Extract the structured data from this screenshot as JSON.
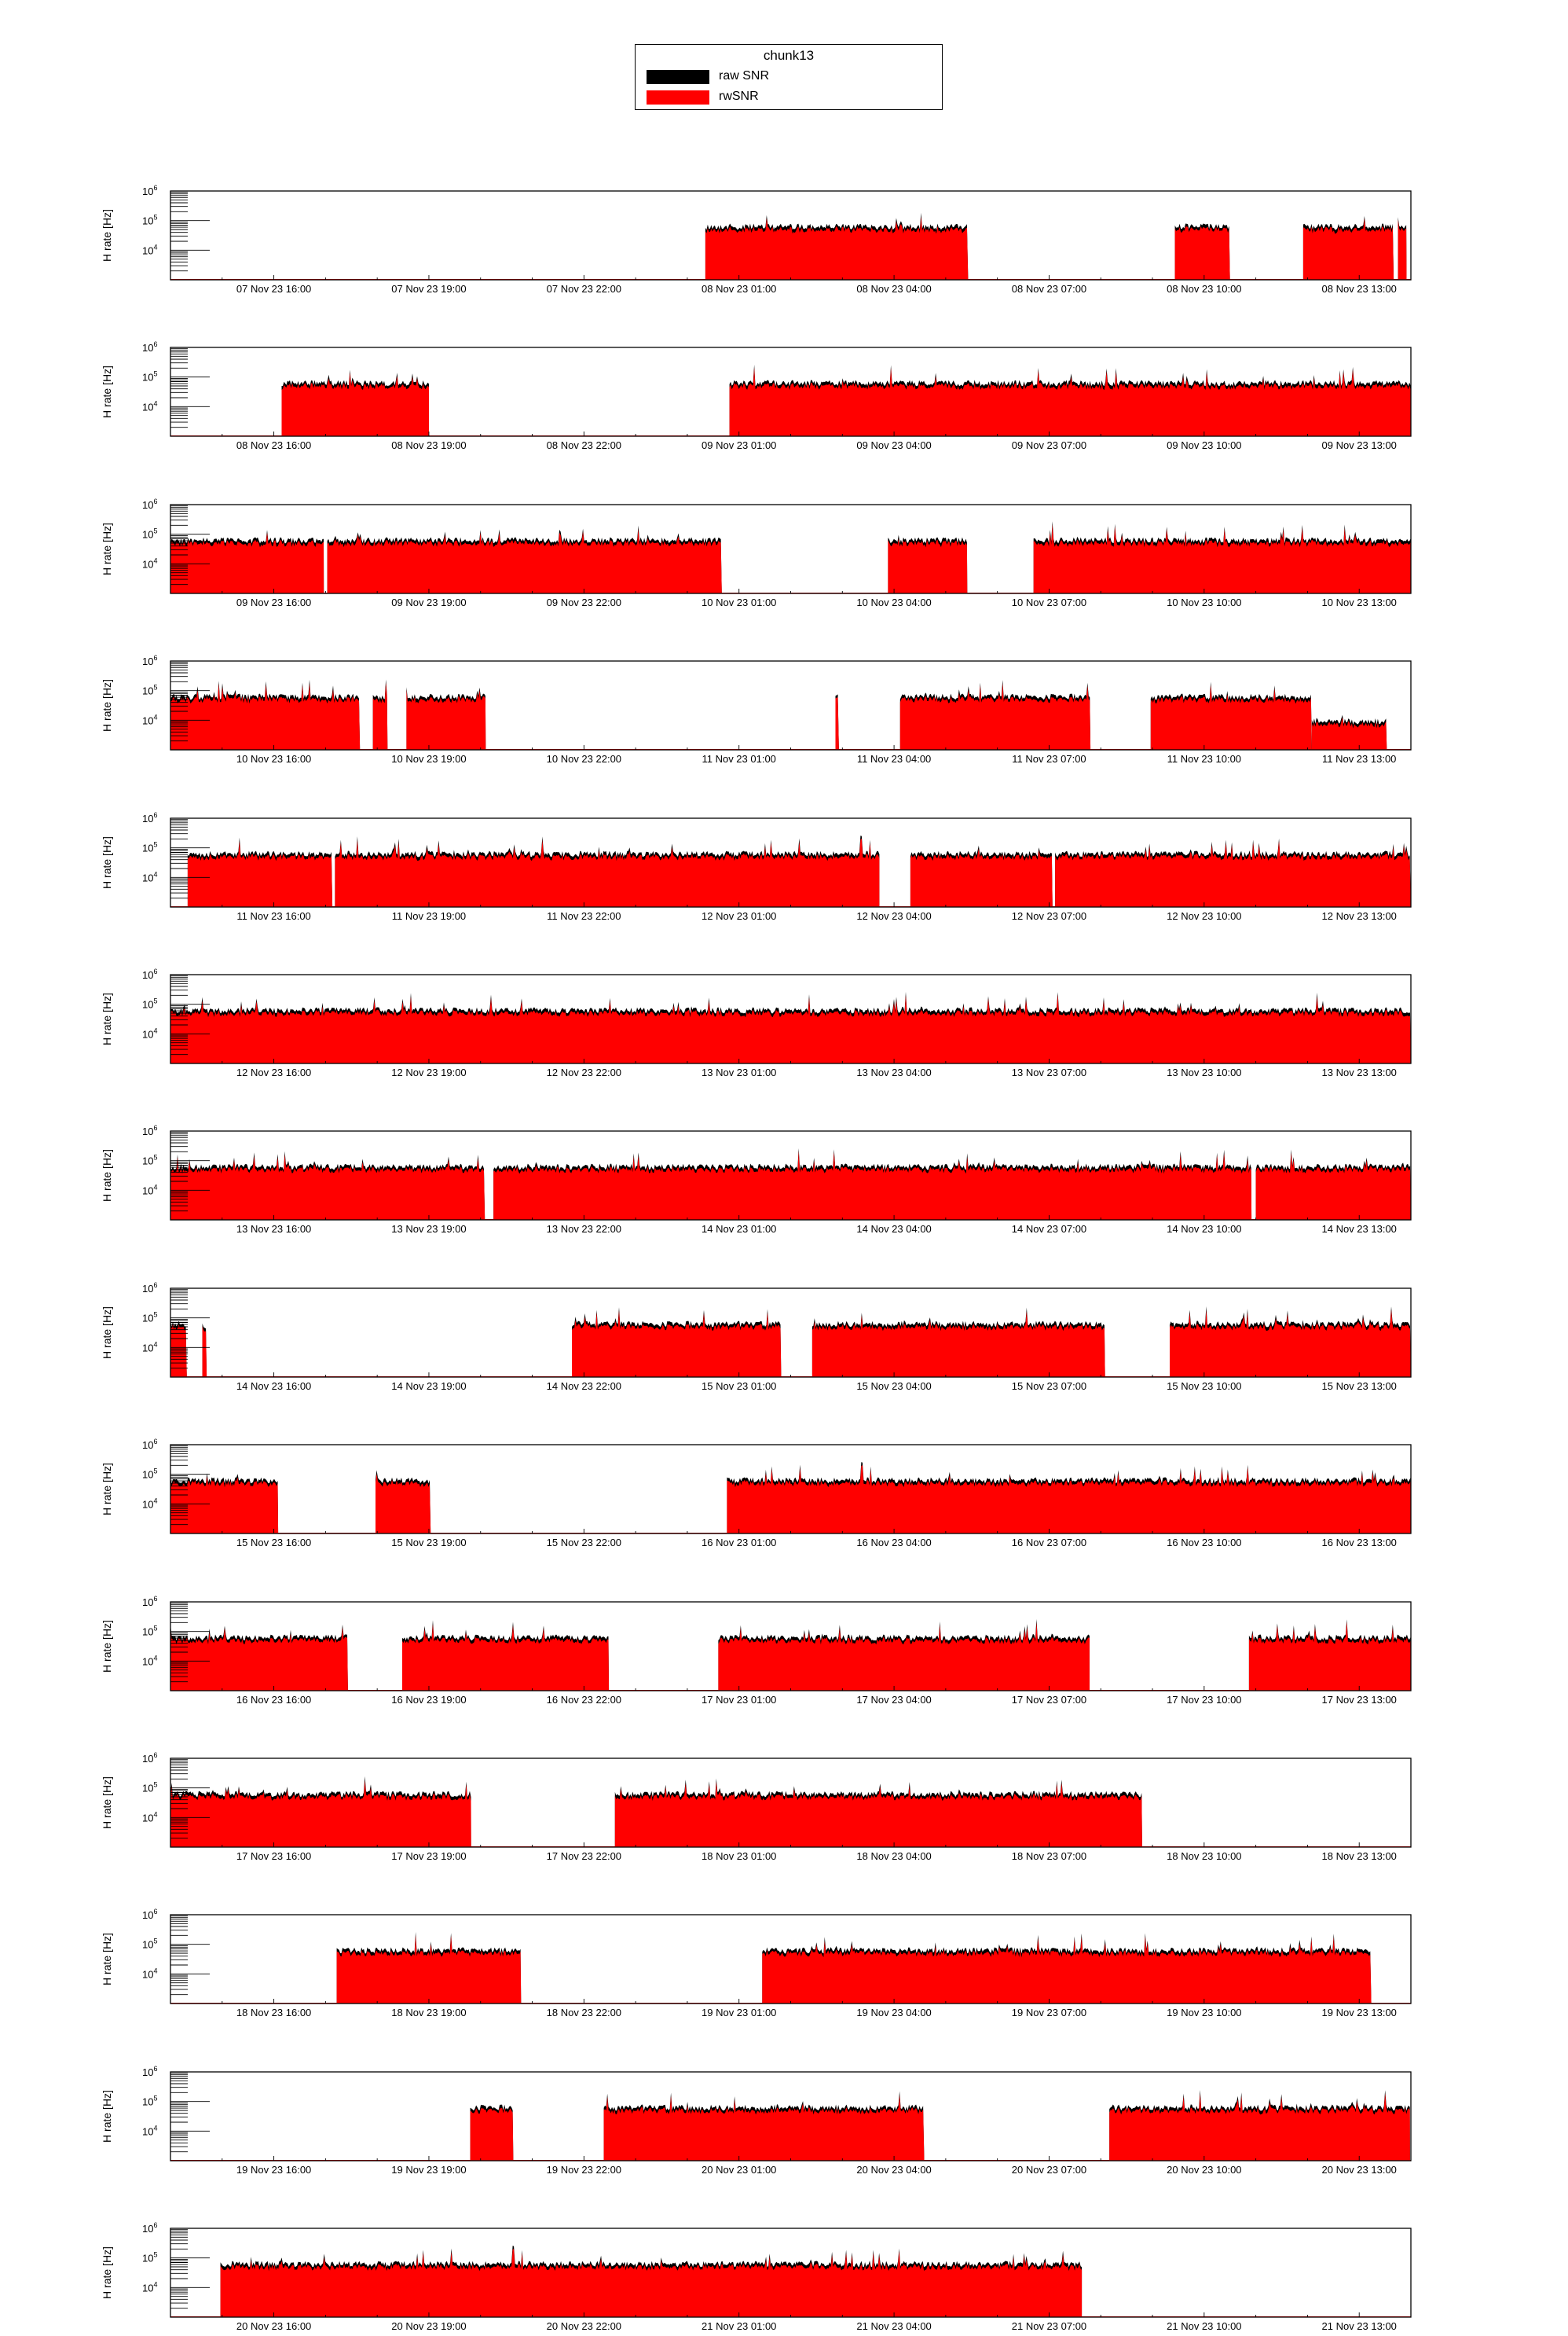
{
  "legend": {
    "title": "chunk13",
    "entries": [
      {
        "label": "raw SNR",
        "color": "#000000"
      },
      {
        "label": "rwSNR",
        "color": "#ff0000"
      }
    ]
  },
  "chart_data": {
    "type": "bar",
    "title": "chunk13",
    "ylabel": "H rate [Hz]",
    "yscale": "log",
    "ylim": [
      1000,
      1000000
    ],
    "y_ticks": [
      "10^4",
      "10^5",
      "10^6"
    ],
    "series": [
      {
        "name": "raw SNR",
        "color": "#000000"
      },
      {
        "name": "rwSNR",
        "color": "#ff0000"
      }
    ],
    "panels": [
      {
        "start": "2023-11-07 14:00",
        "x_ticks": [
          "07 Nov 23 16:00",
          "07 Nov 23 19:00",
          "07 Nov 23 22:00",
          "08 Nov 23 01:00",
          "08 Nov 23 04:00",
          "08 Nov 23 07:00",
          "08 Nov 23 10:00",
          "08 Nov 23 13:00"
        ],
        "segments": [
          {
            "from": "00:21:00",
            "to": "05:26:00",
            "level": 55000
          },
          {
            "from": "09:26:00",
            "to": "10:30:00",
            "level": 55000
          },
          {
            "from": "11:55:00",
            "to": "13:40:00",
            "level": 55000
          },
          {
            "from": "13:45:00",
            "to": "13:55:00",
            "level": 55000
          }
        ]
      },
      {
        "start": "2023-11-08 14:00",
        "x_ticks": [
          "08 Nov 23 16:00",
          "08 Nov 23 19:00",
          "08 Nov 23 22:00",
          "09 Nov 23 01:00",
          "09 Nov 23 04:00",
          "09 Nov 23 07:00",
          "09 Nov 23 10:00",
          "09 Nov 23 13:00"
        ],
        "segments": [
          {
            "from": "16:09:00",
            "to": "19:00:00",
            "level": 55000
          },
          {
            "from": "00:49:00",
            "to": "14:00:00",
            "level": 55000
          }
        ]
      },
      {
        "start": "2023-11-09 14:00",
        "x_ticks": [
          "09 Nov 23 16:00",
          "09 Nov 23 19:00",
          "09 Nov 23 22:00",
          "10 Nov 23 01:00",
          "10 Nov 23 04:00",
          "10 Nov 23 07:00",
          "10 Nov 23 10:00",
          "10 Nov 23 13:00"
        ],
        "segments": [
          {
            "from": "14:00:00",
            "to": "16:58:00",
            "level": 55000
          },
          {
            "from": "17:02:00",
            "to": "00:40:00",
            "level": 55000
          },
          {
            "from": "03:53:00",
            "to": "05:25:00",
            "level": 55000
          },
          {
            "from": "06:42:00",
            "to": "14:00:00",
            "level": 55000
          }
        ]
      },
      {
        "start": "2023-11-10 14:00",
        "x_ticks": [
          "10 Nov 23 16:00",
          "10 Nov 23 19:00",
          "10 Nov 23 22:00",
          "11 Nov 23 01:00",
          "11 Nov 23 04:00",
          "11 Nov 23 07:00",
          "11 Nov 23 10:00",
          "11 Nov 23 13:00"
        ],
        "segments": [
          {
            "from": "14:00:00",
            "to": "17:40:00",
            "level": 55000
          },
          {
            "from": "17:55:00",
            "to": "18:12:00",
            "level": 55000
          },
          {
            "from": "18:34:00",
            "to": "20:06:00",
            "level": 55000
          },
          {
            "from": "02:52:00",
            "to": "02:56:00",
            "level": 55000
          },
          {
            "from": "04:07:00",
            "to": "07:48:00",
            "level": 55000
          },
          {
            "from": "08:58:00",
            "to": "12:05:00",
            "level": 55000
          },
          {
            "from": "12:05:00",
            "to": "13:32:00",
            "level": 8000
          }
        ]
      },
      {
        "start": "2023-11-11 14:00",
        "x_ticks": [
          "11 Nov 23 16:00",
          "11 Nov 23 19:00",
          "11 Nov 23 22:00",
          "12 Nov 23 01:00",
          "12 Nov 23 04:00",
          "12 Nov 23 07:00",
          "12 Nov 23 10:00",
          "12 Nov 23 13:00"
        ],
        "segments": [
          {
            "from": "14:20:00",
            "to": "17:08:00",
            "level": 55000
          },
          {
            "from": "17:11:00",
            "to": "03:43:00",
            "level": 55000
          },
          {
            "from": "04:19:00",
            "to": "07:04:00",
            "level": 55000
          },
          {
            "from": "07:07:00",
            "to": "14:00:00",
            "level": 55000
          }
        ]
      },
      {
        "start": "2023-11-12 14:00",
        "x_ticks": [
          "12 Nov 23 16:00",
          "12 Nov 23 19:00",
          "12 Nov 23 22:00",
          "13 Nov 23 01:00",
          "13 Nov 23 04:00",
          "13 Nov 23 07:00",
          "13 Nov 23 10:00",
          "13 Nov 23 13:00"
        ],
        "segments": [
          {
            "from": "14:00:00",
            "to": "14:00:00",
            "level": 55000,
            "full": true
          }
        ]
      },
      {
        "start": "2023-11-13 14:00",
        "x_ticks": [
          "13 Nov 23 16:00",
          "13 Nov 23 19:00",
          "13 Nov 23 22:00",
          "14 Nov 23 01:00",
          "14 Nov 23 04:00",
          "14 Nov 23 07:00",
          "14 Nov 23 10:00",
          "14 Nov 23 13:00"
        ],
        "segments": [
          {
            "from": "14:00:00",
            "to": "20:05:00",
            "level": 55000
          },
          {
            "from": "20:15:00",
            "to": "10:55:00",
            "level": 55000
          },
          {
            "from": "11:00:00",
            "to": "14:00:00",
            "level": 55000
          }
        ]
      },
      {
        "start": "2023-11-14 14:00",
        "x_ticks": [
          "14 Nov 23 16:00",
          "14 Nov 23 19:00",
          "14 Nov 23 22:00",
          "15 Nov 23 01:00",
          "15 Nov 23 04:00",
          "15 Nov 23 07:00",
          "15 Nov 23 10:00",
          "15 Nov 23 13:00"
        ],
        "segments": [
          {
            "from": "14:00:00",
            "to": "14:19:00",
            "level": 55000
          },
          {
            "from": "14:37:00",
            "to": "14:42:00",
            "level": 45000
          },
          {
            "from": "21:46:00",
            "to": "01:49:00",
            "level": 55000
          },
          {
            "from": "02:25:00",
            "to": "08:05:00",
            "level": 55000
          },
          {
            "from": "09:20:00",
            "to": "14:00:00",
            "level": 55000
          }
        ]
      },
      {
        "start": "2023-11-15 14:00",
        "x_ticks": [
          "15 Nov 23 16:00",
          "15 Nov 23 19:00",
          "15 Nov 23 22:00",
          "16 Nov 23 01:00",
          "16 Nov 23 04:00",
          "16 Nov 23 07:00",
          "16 Nov 23 10:00",
          "16 Nov 23 13:00"
        ],
        "segments": [
          {
            "from": "14:00:00",
            "to": "16:05:00",
            "level": 55000
          },
          {
            "from": "17:58:00",
            "to": "19:02:00",
            "level": 55000
          },
          {
            "from": "00:46:00",
            "to": "14:00:00",
            "level": 55000
          }
        ]
      },
      {
        "start": "2023-11-16 14:00",
        "x_ticks": [
          "16 Nov 23 16:00",
          "16 Nov 23 19:00",
          "16 Nov 23 22:00",
          "17 Nov 23 01:00",
          "17 Nov 23 04:00",
          "17 Nov 23 07:00",
          "17 Nov 23 10:00",
          "17 Nov 23 13:00"
        ],
        "segments": [
          {
            "from": "14:00:00",
            "to": "17:26:00",
            "level": 55000
          },
          {
            "from": "18:29:00",
            "to": "22:29:00",
            "level": 55000
          },
          {
            "from": "00:36:00",
            "to": "07:47:00",
            "level": 55000
          },
          {
            "from": "10:52:00",
            "to": "14:00:00",
            "level": 55000
          }
        ]
      },
      {
        "start": "2023-11-17 14:00",
        "x_ticks": [
          "17 Nov 23 16:00",
          "17 Nov 23 19:00",
          "17 Nov 23 22:00",
          "18 Nov 23 01:00",
          "18 Nov 23 04:00",
          "18 Nov 23 07:00",
          "18 Nov 23 10:00",
          "18 Nov 23 13:00"
        ],
        "segments": [
          {
            "from": "14:00:00",
            "to": "19:49:00",
            "level": 55000
          },
          {
            "from": "22:36:00",
            "to": "08:48:00",
            "level": 55000
          }
        ]
      },
      {
        "start": "2023-11-18 14:00",
        "x_ticks": [
          "18 Nov 23 16:00",
          "18 Nov 23 19:00",
          "18 Nov 23 22:00",
          "19 Nov 23 01:00",
          "19 Nov 23 04:00",
          "19 Nov 23 07:00",
          "19 Nov 23 10:00",
          "19 Nov 23 13:00"
        ],
        "segments": [
          {
            "from": "17:13:00",
            "to": "20:47:00",
            "level": 55000
          },
          {
            "from": "01:27:00",
            "to": "13:14:00",
            "level": 55000
          }
        ]
      },
      {
        "start": "2023-11-19 14:00",
        "x_ticks": [
          "19 Nov 23 16:00",
          "19 Nov 23 19:00",
          "19 Nov 23 22:00",
          "20 Nov 23 01:00",
          "20 Nov 23 04:00",
          "20 Nov 23 07:00",
          "20 Nov 23 10:00",
          "20 Nov 23 13:00"
        ],
        "segments": [
          {
            "from": "19:48:00",
            "to": "20:38:00",
            "level": 55000
          },
          {
            "from": "22:23:00",
            "to": "04:35:00",
            "level": 55000
          },
          {
            "from": "08:10:00",
            "to": "13:59:00",
            "level": 55000
          }
        ]
      },
      {
        "start": "2023-11-20 14:00",
        "x_ticks": [
          "20 Nov 23 16:00",
          "20 Nov 23 19:00",
          "20 Nov 23 22:00",
          "21 Nov 23 01:00",
          "21 Nov 23 04:00",
          "21 Nov 23 07:00",
          "21 Nov 23 10:00",
          "21 Nov 23 13:00"
        ],
        "segments": [
          {
            "from": "14:58:00",
            "to": "07:38:00",
            "level": 55000
          }
        ]
      }
    ]
  }
}
